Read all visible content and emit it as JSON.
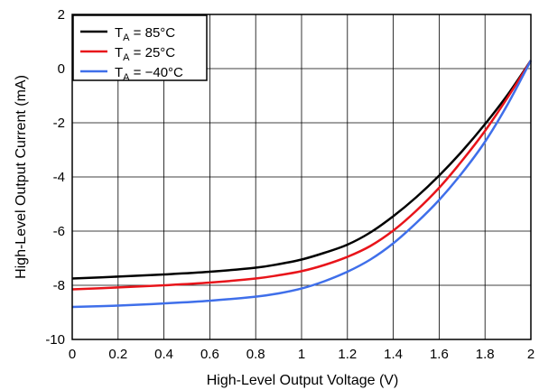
{
  "chart_data": {
    "type": "line",
    "xlabel": "High-Level Output Voltage (V)",
    "ylabel": "High-Level Output Current (mA)",
    "xlim": [
      0,
      2
    ],
    "ylim": [
      -10,
      2
    ],
    "x_ticks": [
      0,
      0.2,
      0.4,
      0.6,
      0.8,
      1,
      1.2,
      1.4,
      1.6,
      1.8,
      2
    ],
    "x_tick_labels": [
      "0",
      "0.2",
      "0.4",
      "0.6",
      "0.8",
      "1",
      "1.2",
      "1.4",
      "1.6",
      "1.8",
      "2"
    ],
    "y_ticks": [
      -10,
      -8,
      -6,
      -4,
      -2,
      0,
      2
    ],
    "y_tick_labels": [
      "-10",
      "-8",
      "-6",
      "-4",
      "-2",
      "0",
      "2"
    ],
    "grid": true,
    "legend_position": "top-left",
    "series": [
      {
        "name": "T_A = 85°C",
        "legend": {
          "prefix": "T",
          "sub": "A",
          "suffix": " = 85°C"
        },
        "color": "#000000",
        "x": [
          0,
          0.2,
          0.4,
          0.6,
          0.8,
          0.9,
          1.0,
          1.1,
          1.2,
          1.3,
          1.4,
          1.5,
          1.6,
          1.7,
          1.8,
          1.9,
          2.0
        ],
        "y": [
          -7.75,
          -7.68,
          -7.6,
          -7.5,
          -7.35,
          -7.22,
          -7.05,
          -6.8,
          -6.5,
          -6.05,
          -5.45,
          -4.75,
          -3.95,
          -3.05,
          -2.05,
          -0.95,
          0.3
        ]
      },
      {
        "name": "T_A = 25°C",
        "legend": {
          "prefix": "T",
          "sub": "A",
          "suffix": " = 25°C"
        },
        "color": "#e8141a",
        "x": [
          0,
          0.2,
          0.4,
          0.6,
          0.8,
          0.9,
          1.0,
          1.1,
          1.2,
          1.3,
          1.4,
          1.5,
          1.6,
          1.7,
          1.8,
          1.9,
          2.0
        ],
        "y": [
          -8.15,
          -8.08,
          -8.0,
          -7.9,
          -7.75,
          -7.63,
          -7.48,
          -7.25,
          -6.95,
          -6.55,
          -5.98,
          -5.25,
          -4.4,
          -3.4,
          -2.3,
          -1.05,
          0.3
        ]
      },
      {
        "name": "T_A = −40°C",
        "legend": {
          "prefix": "T",
          "sub": "A",
          "suffix": " = −40°C"
        },
        "color": "#3f6fea",
        "x": [
          0,
          0.2,
          0.4,
          0.6,
          0.8,
          0.9,
          1.0,
          1.1,
          1.2,
          1.3,
          1.4,
          1.5,
          1.6,
          1.7,
          1.8,
          1.9,
          2.0
        ],
        "y": [
          -8.8,
          -8.75,
          -8.67,
          -8.57,
          -8.42,
          -8.3,
          -8.12,
          -7.85,
          -7.5,
          -7.05,
          -6.45,
          -5.7,
          -4.85,
          -3.85,
          -2.7,
          -1.3,
          0.3
        ]
      }
    ]
  }
}
